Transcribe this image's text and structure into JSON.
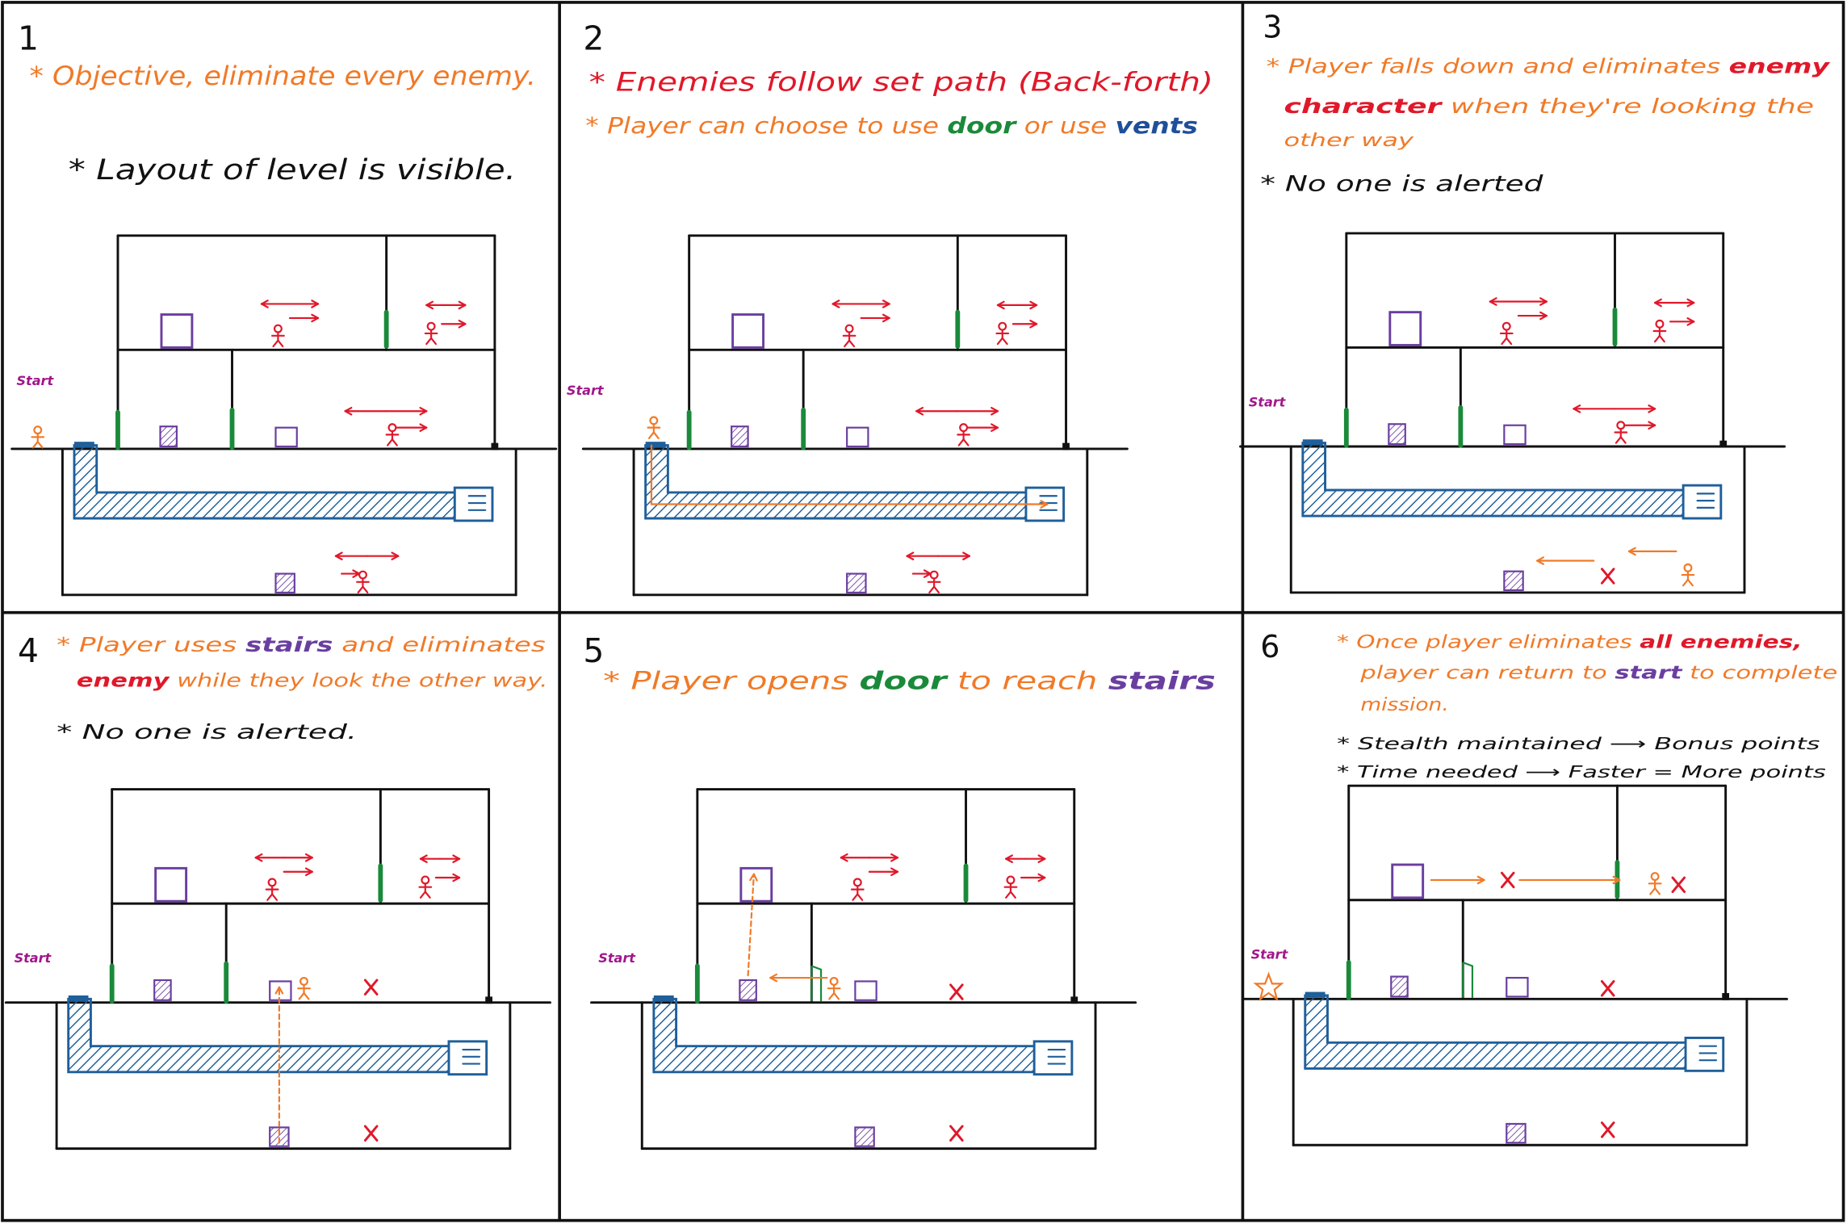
{
  "panels": [
    {
      "number": "1",
      "start": "Start",
      "notes": [
        [
          {
            "text": "* Objective, eliminate every enemy.",
            "color": "#f07a28"
          }
        ],
        [
          {
            "text": "* Layout of level is visible.",
            "color": "#111111"
          }
        ]
      ]
    },
    {
      "number": "2",
      "start": "Start",
      "notes": [
        [
          {
            "text": "* Enemies follow set path (Back-forth)",
            "color": "#e0182a"
          }
        ],
        [
          {
            "text": "* Player can choose to use ",
            "color": "#f07a28"
          },
          {
            "text": "door",
            "color": "#1a8a3a"
          },
          {
            "text": " or use ",
            "color": "#f07a28"
          },
          {
            "text": "vents",
            "color": "#1f4f9a"
          }
        ]
      ]
    },
    {
      "number": "3",
      "start": "Start",
      "notes": [
        [
          {
            "text": "* Player falls down and eliminates ",
            "color": "#f07a28"
          },
          {
            "text": "enemy",
            "color": "#e0182a"
          }
        ],
        [
          {
            "text": "character",
            "color": "#e0182a"
          },
          {
            "text": " when they're looking the",
            "color": "#f07a28"
          }
        ],
        [
          {
            "text": "other way",
            "color": "#f07a28"
          }
        ],
        [
          {
            "text": "* No one is alerted",
            "color": "#111111"
          }
        ]
      ]
    },
    {
      "number": "4",
      "start": "Start",
      "notes": [
        [
          {
            "text": "* Player uses ",
            "color": "#f07a28"
          },
          {
            "text": "stairs",
            "color": "#6a3ea0"
          },
          {
            "text": " and eliminates",
            "color": "#f07a28"
          }
        ],
        [
          {
            "text": "enemy",
            "color": "#e0182a"
          },
          {
            "text": " while they look the other way.",
            "color": "#f07a28"
          }
        ],
        [
          {
            "text": "* No one is alerted.",
            "color": "#111111"
          }
        ]
      ]
    },
    {
      "number": "5",
      "start": "Start",
      "notes": [
        [
          {
            "text": "* Player opens ",
            "color": "#f07a28"
          },
          {
            "text": "door",
            "color": "#1a8a3a"
          },
          {
            "text": " to reach ",
            "color": "#f07a28"
          },
          {
            "text": "stairs",
            "color": "#6a3ea0"
          }
        ]
      ]
    },
    {
      "number": "6",
      "start": "Start",
      "notes": [
        [
          {
            "text": "* Once player eliminates ",
            "color": "#f07a28"
          },
          {
            "text": "all enemies,",
            "color": "#e0182a"
          }
        ],
        [
          {
            "text": "player can return to ",
            "color": "#f07a28"
          },
          {
            "text": "start",
            "color": "#6a3ea0"
          },
          {
            "text": " to complete",
            "color": "#f07a28"
          }
        ],
        [
          {
            "text": "mission.",
            "color": "#f07a28"
          }
        ],
        [
          {
            "text": "* Stealth maintained ⟶ Bonus points",
            "color": "#111111"
          }
        ],
        [
          {
            "text": "* Time needed ⟶ Faster = More points",
            "color": "#111111"
          }
        ]
      ]
    }
  ]
}
